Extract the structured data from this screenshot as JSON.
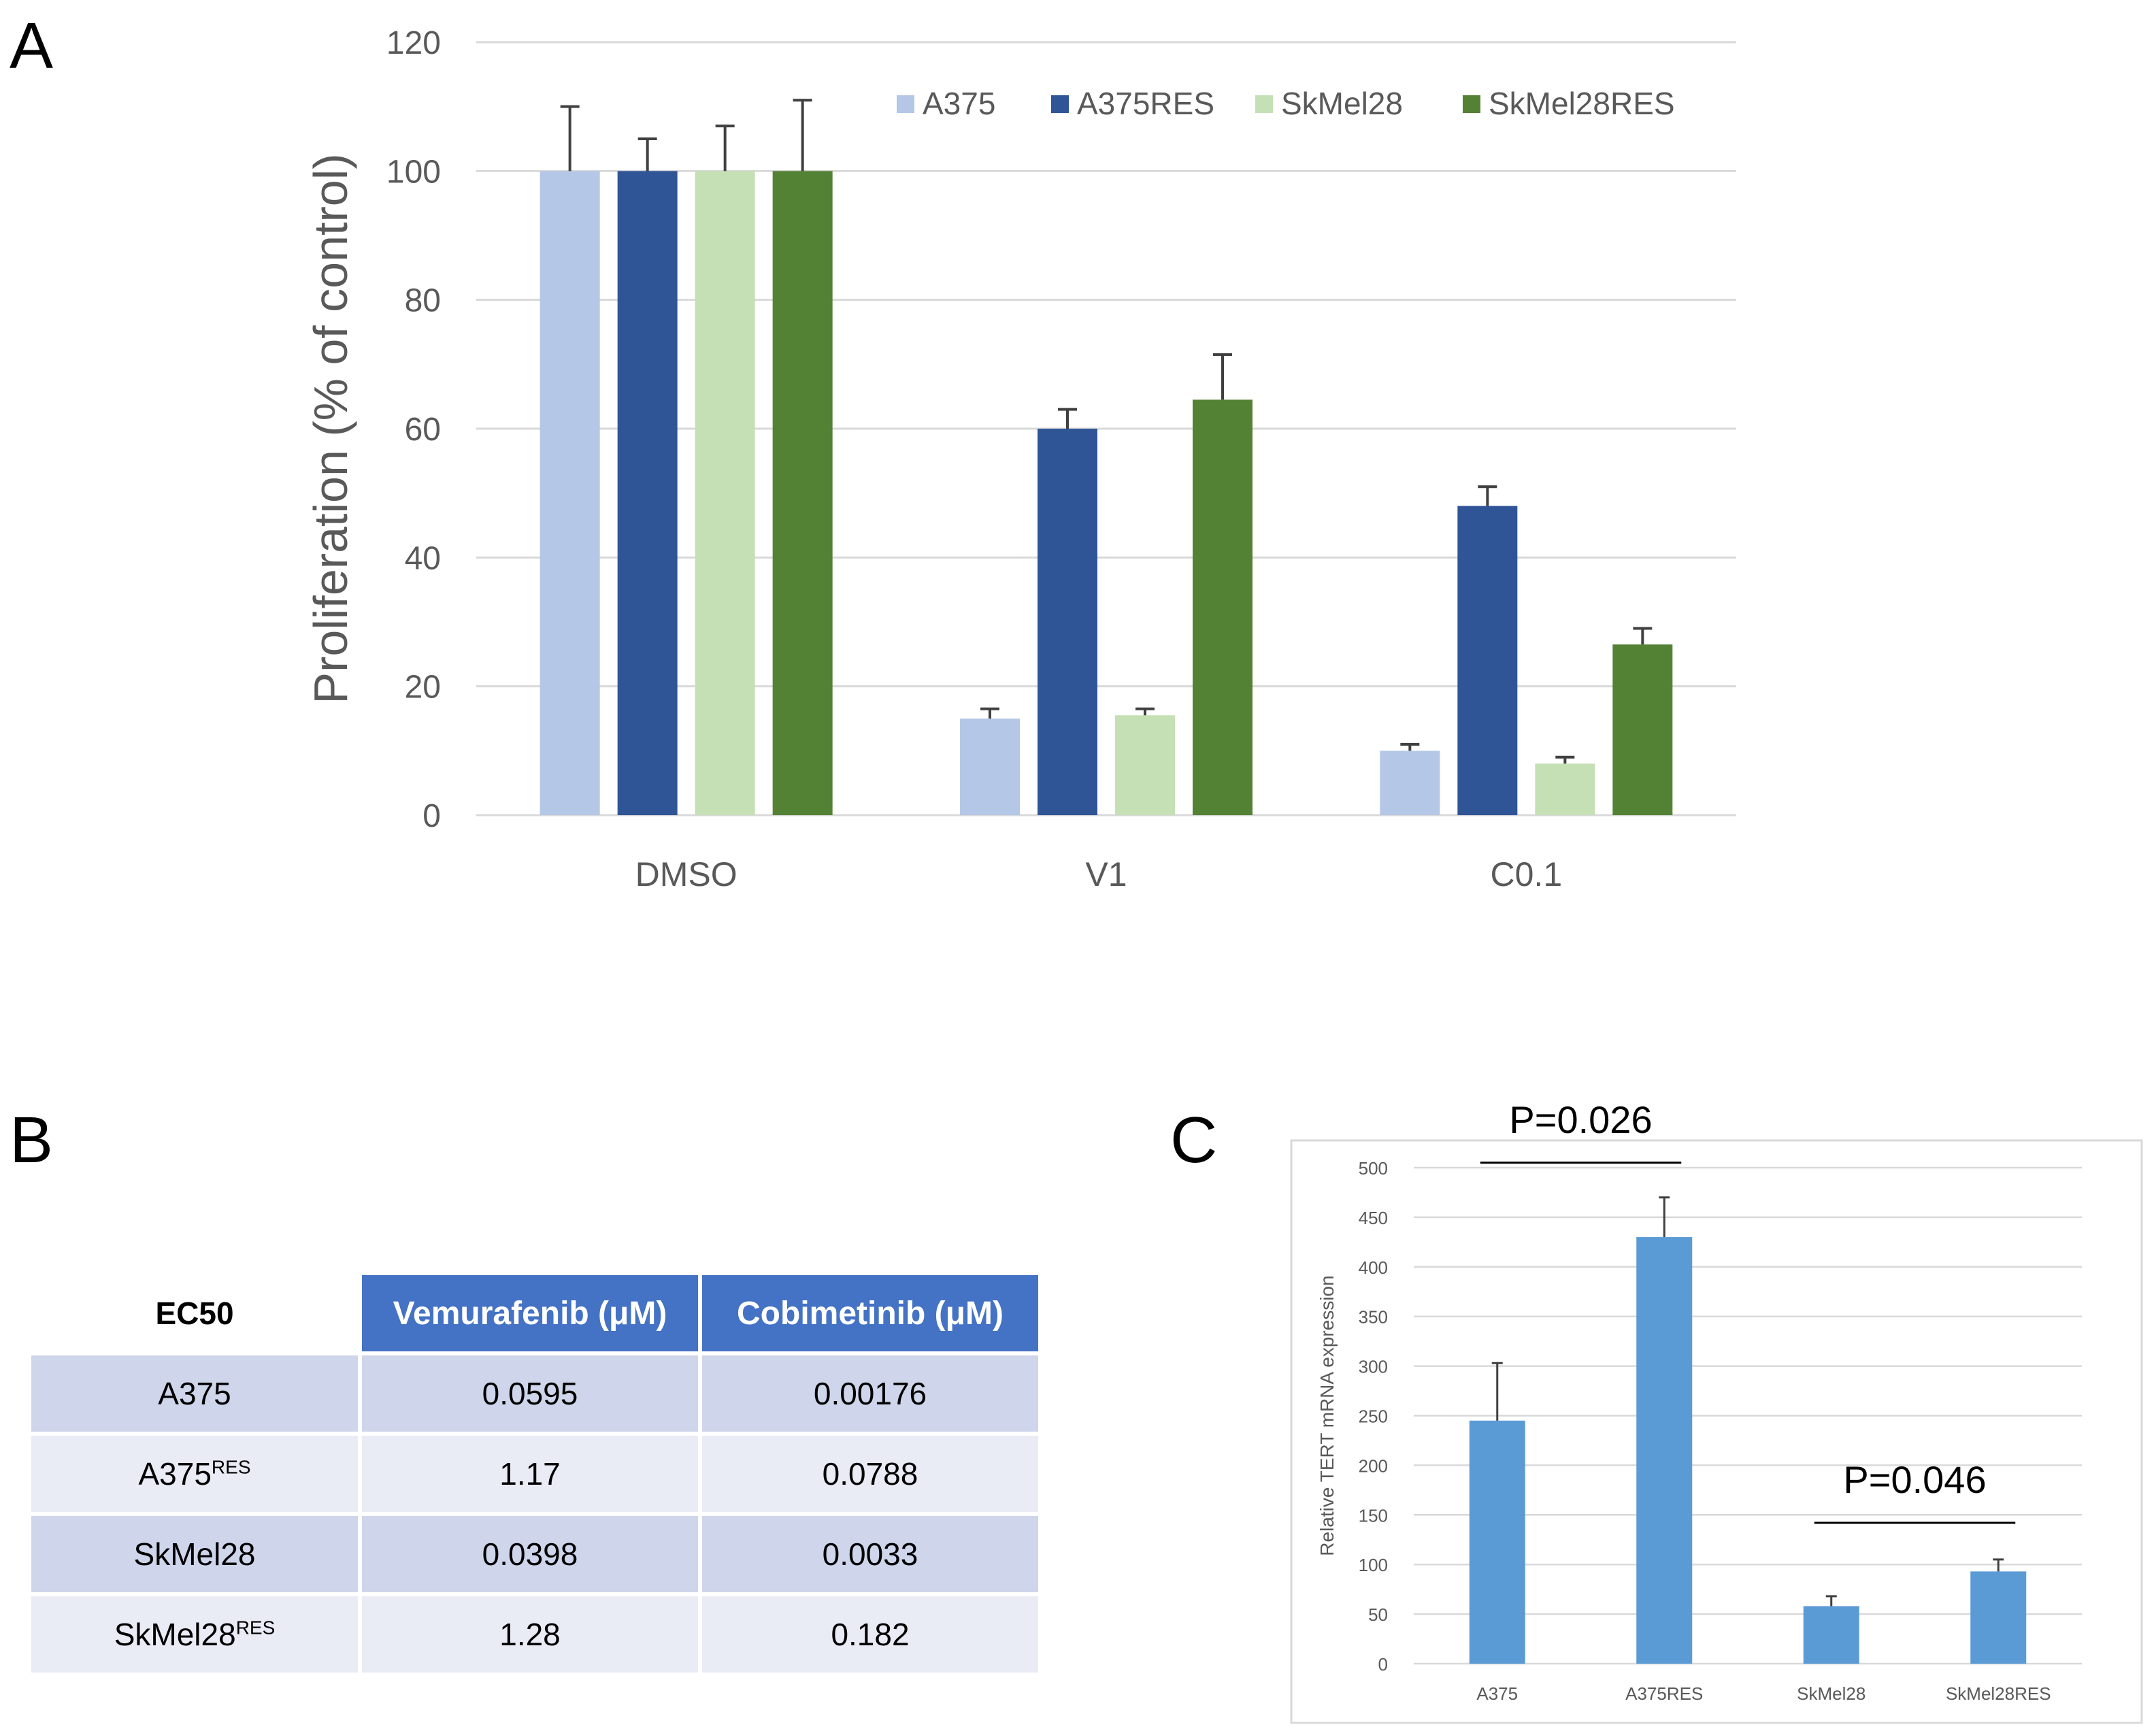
{
  "panels": {
    "a": "A",
    "b": "B",
    "c": "C"
  },
  "colors": {
    "A375": "#b4c7e7",
    "A375RES": "#2f5597",
    "SkMel28": "#c5e0b4",
    "SkMel28RES": "#548235",
    "c_bar": "#5b9bd5",
    "grid": "#d9d9d9",
    "text": "#595959",
    "header": "#4472c4"
  },
  "chart_data": [
    {
      "type": "bar",
      "title": "",
      "xlabel": "",
      "ylabel": "Proliferation (% of control)",
      "ylim": [
        0,
        120
      ],
      "yticks": [
        0,
        20,
        40,
        60,
        80,
        100,
        120
      ],
      "grid": true,
      "legend": "top-right",
      "categories": [
        "DMSO",
        "V1",
        "C0.1"
      ],
      "series": [
        {
          "name": "A375",
          "values": [
            100,
            15,
            10
          ],
          "errors": [
            10,
            1.5,
            1
          ]
        },
        {
          "name": "A375RES",
          "values": [
            100,
            60,
            48
          ],
          "errors": [
            5,
            3,
            3
          ]
        },
        {
          "name": "SkMel28",
          "values": [
            100,
            15.5,
            8
          ],
          "errors": [
            7,
            1,
            1
          ]
        },
        {
          "name": "SkMel28RES",
          "values": [
            100,
            64.5,
            26.5
          ],
          "errors": [
            11,
            7,
            2.5
          ]
        }
      ]
    },
    {
      "type": "table",
      "corner": "EC50",
      "columns": [
        "Vemurafenib (μM)",
        "Cobimetinib (μM)"
      ],
      "rows": [
        {
          "label": "A375",
          "sup": "",
          "values": [
            "0.0595",
            "0.00176"
          ]
        },
        {
          "label": "A375",
          "sup": "RES",
          "values": [
            "1.17",
            "0.0788"
          ]
        },
        {
          "label": "SkMel28",
          "sup": "",
          "values": [
            "0.0398",
            "0.0033"
          ]
        },
        {
          "label": "SkMel28",
          "sup": "RES",
          "values": [
            "1.28",
            "0.182"
          ]
        }
      ]
    },
    {
      "type": "bar",
      "title": "",
      "xlabel": "",
      "ylabel": "Relative TERT mRNA expression",
      "ylim": [
        0,
        500
      ],
      "yticks": [
        0,
        50,
        100,
        150,
        200,
        250,
        300,
        350,
        400,
        450,
        500
      ],
      "grid": true,
      "categories": [
        "A375",
        "A375RES",
        "SkMel28",
        "SkMel28RES"
      ],
      "values": [
        245,
        430,
        58,
        93
      ],
      "errors": [
        58,
        40,
        10,
        12
      ],
      "annotations": [
        {
          "text": "P=0.026",
          "from": "A375",
          "to": "A375RES",
          "level": 505,
          "label_level": 535
        },
        {
          "text": "P=0.046",
          "from": "SkMel28",
          "to": "SkMel28RES",
          "level": 142,
          "label_level": 172
        }
      ]
    }
  ]
}
